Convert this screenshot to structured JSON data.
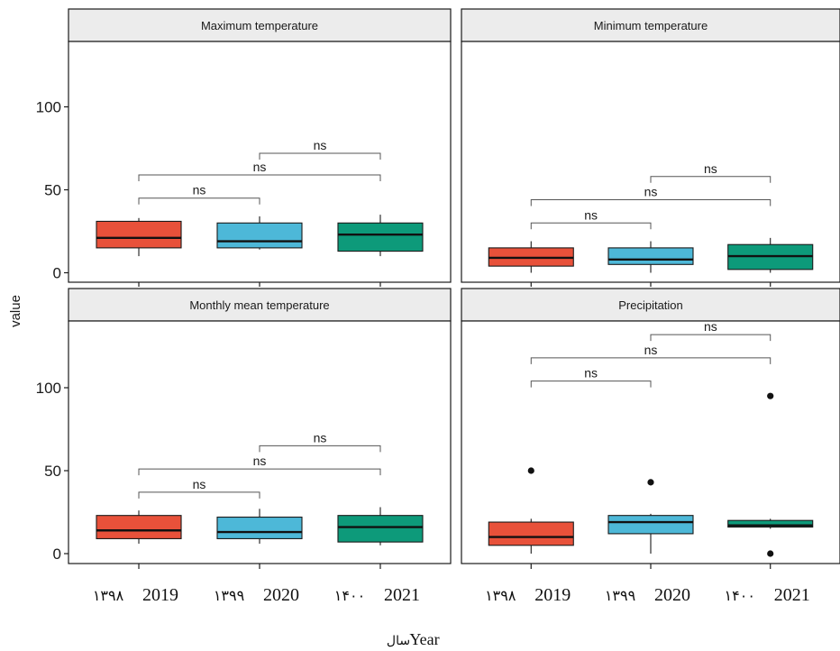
{
  "chart_data": {
    "type": "box",
    "y_axis_title": "value",
    "x_axis_title": {
      "en": "Year",
      "fa": "سال"
    },
    "ylim": [
      -5,
      140
    ],
    "y_ticks": [
      "0",
      "50",
      "100"
    ],
    "categories": [
      {
        "en": "2019",
        "fa": "۱۳۹۸"
      },
      {
        "en": "2020",
        "fa": "۱۳۹۹"
      },
      {
        "en": "2021",
        "fa": "۱۴۰۰"
      }
    ],
    "colors": [
      "#e8513a",
      "#4db8d8",
      "#0d9a7a"
    ],
    "significance_label": "ns",
    "panels": [
      {
        "title": "Maximum temperature",
        "boxes": [
          {
            "whisker_low": 10,
            "q1": 15,
            "median": 21,
            "q3": 31,
            "whisker_high": 33,
            "outliers": []
          },
          {
            "whisker_low": 14,
            "q1": 15,
            "median": 19,
            "q3": 30,
            "whisker_high": 34,
            "outliers": []
          },
          {
            "whisker_low": 10,
            "q1": 13,
            "median": 23,
            "q3": 30,
            "whisker_high": 35,
            "outliers": []
          }
        ],
        "comparisons": [
          {
            "from": 0,
            "to": 1,
            "y": 45,
            "label": "ns"
          },
          {
            "from": 0,
            "to": 2,
            "y": 59,
            "label": "ns"
          },
          {
            "from": 1,
            "to": 2,
            "y": 72,
            "label": "ns"
          }
        ]
      },
      {
        "title": "Minimum temperature",
        "boxes": [
          {
            "whisker_low": 0,
            "q1": 4,
            "median": 9,
            "q3": 15,
            "whisker_high": 19,
            "outliers": []
          },
          {
            "whisker_low": 0,
            "q1": 5,
            "median": 8,
            "q3": 15,
            "whisker_high": 19,
            "outliers": []
          },
          {
            "whisker_low": 0,
            "q1": 2,
            "median": 10,
            "q3": 17,
            "whisker_high": 21,
            "outliers": []
          }
        ],
        "comparisons": [
          {
            "from": 0,
            "to": 1,
            "y": 30,
            "label": "ns"
          },
          {
            "from": 0,
            "to": 2,
            "y": 44,
            "label": "ns"
          },
          {
            "from": 1,
            "to": 2,
            "y": 58,
            "label": "ns"
          }
        ]
      },
      {
        "title": "Monthly mean temperature",
        "boxes": [
          {
            "whisker_low": 6,
            "q1": 9,
            "median": 14,
            "q3": 23,
            "whisker_high": 26,
            "outliers": []
          },
          {
            "whisker_low": 6,
            "q1": 9,
            "median": 13,
            "q3": 22,
            "whisker_high": 27,
            "outliers": []
          },
          {
            "whisker_low": 5,
            "q1": 7,
            "median": 16,
            "q3": 23,
            "whisker_high": 28,
            "outliers": []
          }
        ],
        "comparisons": [
          {
            "from": 0,
            "to": 1,
            "y": 37,
            "label": "ns"
          },
          {
            "from": 0,
            "to": 2,
            "y": 51,
            "label": "ns"
          },
          {
            "from": 1,
            "to": 2,
            "y": 65,
            "label": "ns"
          }
        ]
      },
      {
        "title": "Precipitation",
        "boxes": [
          {
            "whisker_low": 0,
            "q1": 5,
            "median": 10,
            "q3": 19,
            "whisker_high": 21,
            "outliers": [
              50
            ]
          },
          {
            "whisker_low": 0,
            "q1": 12,
            "median": 19,
            "q3": 23,
            "whisker_high": 24,
            "outliers": [
              43
            ]
          },
          {
            "whisker_low": 15,
            "q1": 16,
            "median": 17,
            "q3": 20,
            "whisker_high": 21,
            "outliers": [
              95,
              0
            ]
          }
        ],
        "comparisons": [
          {
            "from": 0,
            "to": 1,
            "y": 104,
            "label": "ns"
          },
          {
            "from": 0,
            "to": 2,
            "y": 118,
            "label": "ns"
          },
          {
            "from": 1,
            "to": 2,
            "y": 132,
            "label": "ns"
          }
        ]
      }
    ]
  }
}
